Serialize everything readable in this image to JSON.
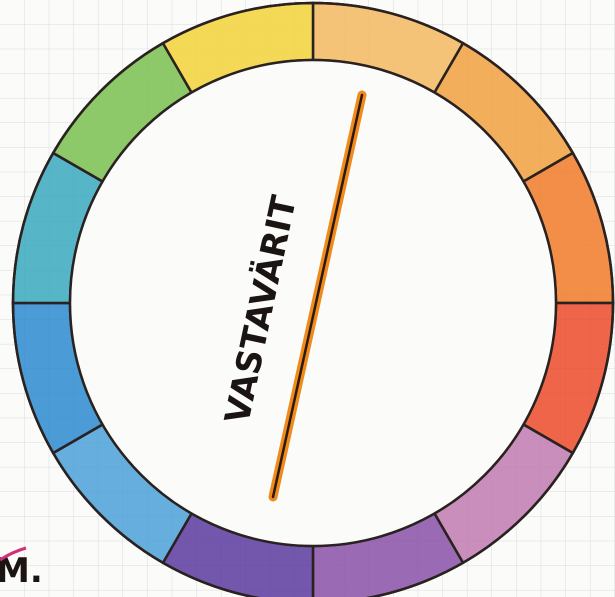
{
  "drawing": {
    "label": "VASTAVÄRIT",
    "corner_note": "M."
  }
}
